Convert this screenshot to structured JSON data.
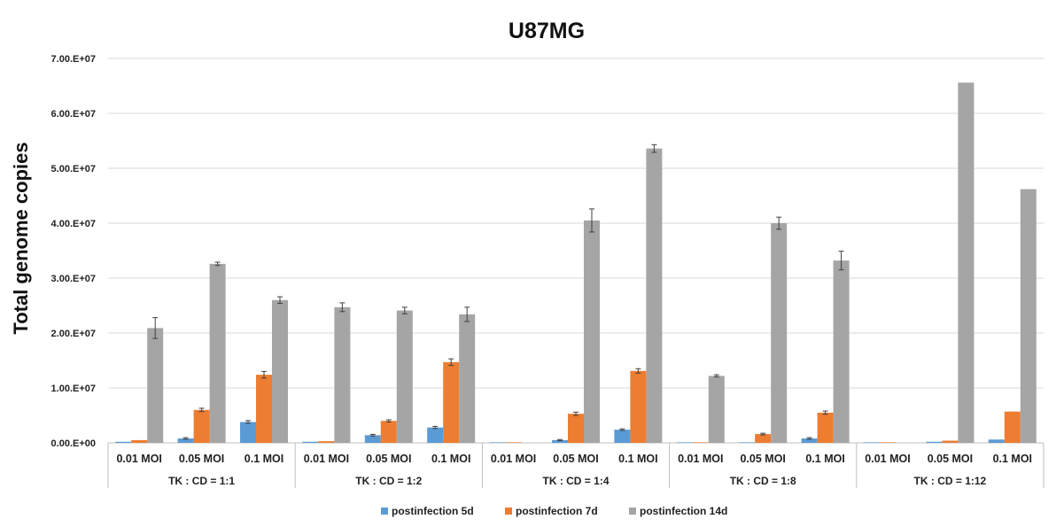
{
  "chart_data": {
    "type": "bar",
    "title": "U87MG",
    "ylabel": "Total genome copies",
    "xlabel": "",
    "ylim": [
      0,
      70000000
    ],
    "yticks": [
      0,
      10000000,
      20000000,
      30000000,
      40000000,
      50000000,
      60000000,
      70000000
    ],
    "ytick_labels": [
      "0.00.E+00",
      "1.00.E+07",
      "2.00.E+07",
      "3.00.E+07",
      "4.00.E+07",
      "5.00.E+07",
      "6.00.E+07",
      "7.00.E+07"
    ],
    "grid": true,
    "legend_position": "bottom",
    "groups": [
      "TK : CD = 1:1",
      "TK : CD = 1:2",
      "TK : CD = 1:4",
      "TK : CD = 1:8",
      "TK : CD = 1:12"
    ],
    "group_titles": [
      "TK : CD = 1:1",
      "TK : CD = 1:2",
      "TK : CD = 1:4",
      "TK : CD = 1:8",
      "TK : CD = 1:12"
    ],
    "categories": [
      "0.01 MOI",
      "0.05 MOI",
      "0.1 MOI"
    ],
    "series": [
      {
        "name": "postinfection 5d",
        "color": "#5B9BD5",
        "values": [
          [
            200000,
            800000,
            3800000
          ],
          [
            200000,
            1400000,
            2800000
          ],
          [
            100000,
            500000,
            2400000
          ],
          [
            100000,
            100000,
            800000
          ],
          [
            100000,
            200000,
            600000
          ]
        ],
        "errors": [
          [
            0,
            150000,
            250000
          ],
          [
            0,
            150000,
            200000
          ],
          [
            0,
            100000,
            150000
          ],
          [
            0,
            0,
            150000
          ],
          [
            0,
            0,
            0
          ]
        ]
      },
      {
        "name": "postinfection 7d",
        "color": "#ED7D31",
        "values": [
          [
            500000,
            6000000,
            12400000
          ],
          [
            300000,
            4000000,
            14700000
          ],
          [
            100000,
            5300000,
            13100000
          ],
          [
            100000,
            1600000,
            5500000
          ],
          [
            100000,
            400000,
            5700000
          ]
        ],
        "errors": [
          [
            0,
            300000,
            600000
          ],
          [
            0,
            200000,
            600000
          ],
          [
            0,
            300000,
            400000
          ],
          [
            0,
            150000,
            300000
          ],
          [
            0,
            0,
            0
          ]
        ]
      },
      {
        "name": "postinfection 14d",
        "color": "#A5A5A5",
        "values": [
          [
            20900000,
            32600000,
            26000000
          ],
          [
            24700000,
            24100000,
            23400000
          ],
          [
            0,
            40500000,
            53600000
          ],
          [
            12200000,
            40000000,
            33200000
          ],
          [
            0,
            65600000,
            46200000
          ]
        ],
        "errors": [
          [
            1900000,
            300000,
            600000
          ],
          [
            800000,
            600000,
            1300000
          ],
          [
            0,
            2100000,
            700000
          ],
          [
            200000,
            1100000,
            1700000
          ],
          [
            0,
            0,
            0
          ]
        ]
      }
    ]
  }
}
